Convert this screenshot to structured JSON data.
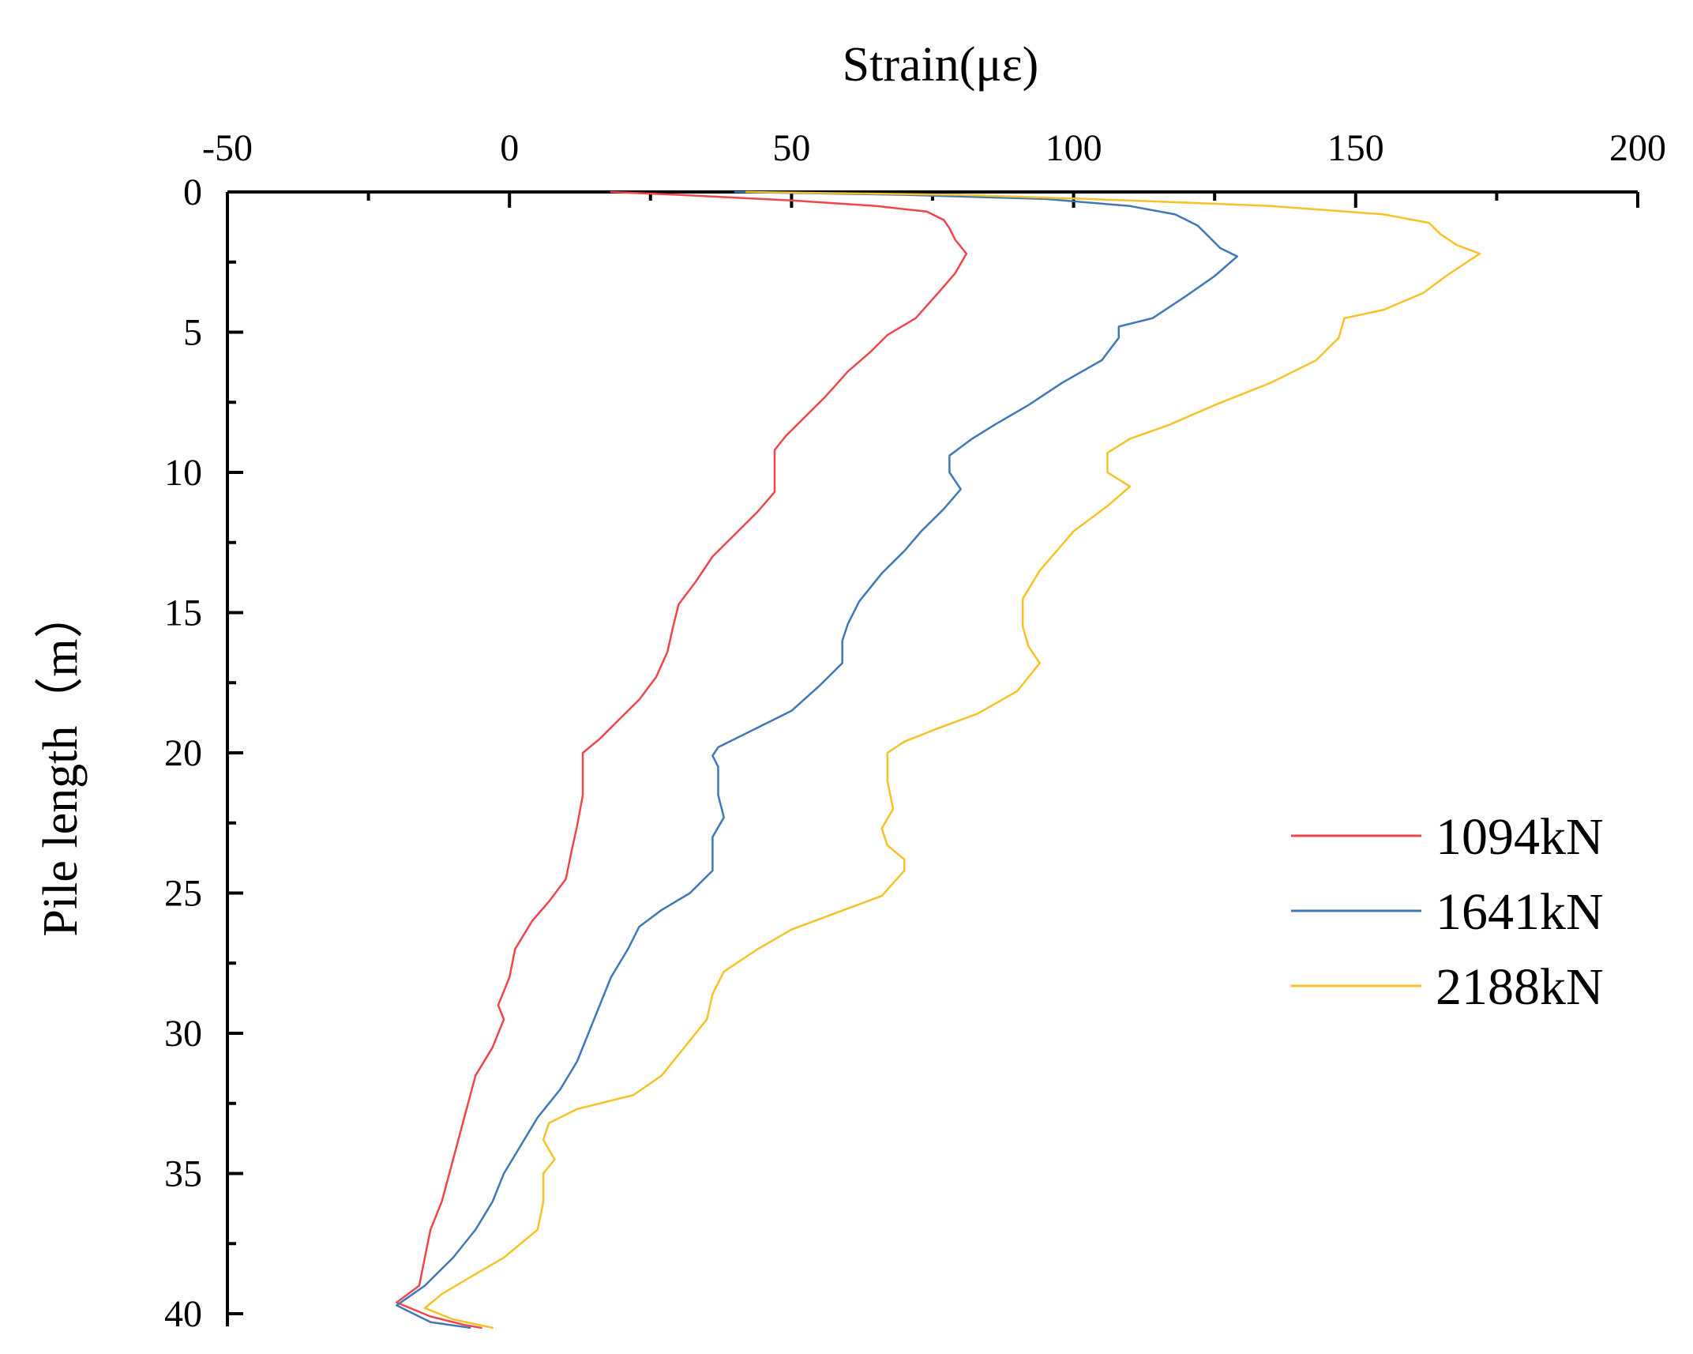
{
  "chart_data": {
    "type": "line",
    "xlabel": "Strain(με)",
    "ylabel": "Pile length（m）",
    "xlim": [
      -50,
      200
    ],
    "ylim": [
      0,
      40
    ],
    "x_axis_position": "top",
    "y_axis_inverted": true,
    "grid": false,
    "legend_position": "right",
    "xticks": [
      -50,
      0,
      50,
      100,
      150,
      200
    ],
    "xtick_labels": [
      "-50",
      "0",
      "50",
      "100",
      "150",
      "200"
    ],
    "yticks": [
      0,
      5,
      10,
      15,
      20,
      25,
      30,
      35,
      40
    ],
    "ytick_labels": [
      "0",
      "5",
      "10",
      "15",
      "20",
      "25",
      "30",
      "35",
      "40"
    ],
    "series": [
      {
        "name": "1094kN",
        "color": "#f0454a",
        "points": [
          [
            18,
            0
          ],
          [
            30,
            0.1
          ],
          [
            50,
            0.3
          ],
          [
            65,
            0.5
          ],
          [
            74,
            0.7
          ],
          [
            77,
            1.0
          ],
          [
            78,
            1.3
          ],
          [
            79,
            1.7
          ],
          [
            81,
            2.2
          ],
          [
            79,
            2.9
          ],
          [
            76,
            3.6
          ],
          [
            72,
            4.5
          ],
          [
            67,
            5.1
          ],
          [
            64,
            5.7
          ],
          [
            60,
            6.4
          ],
          [
            56,
            7.3
          ],
          [
            52,
            8.1
          ],
          [
            49,
            8.7
          ],
          [
            47,
            9.2
          ],
          [
            47,
            10.0
          ],
          [
            47,
            10.7
          ],
          [
            44,
            11.4
          ],
          [
            40,
            12.2
          ],
          [
            36,
            13.0
          ],
          [
            33,
            13.9
          ],
          [
            30,
            14.7
          ],
          [
            29,
            15.5
          ],
          [
            28,
            16.4
          ],
          [
            26,
            17.3
          ],
          [
            23,
            18.1
          ],
          [
            19,
            18.9
          ],
          [
            16,
            19.5
          ],
          [
            13,
            20.0
          ],
          [
            13,
            20.6
          ],
          [
            13,
            21.5
          ],
          [
            12,
            22.6
          ],
          [
            11,
            23.5
          ],
          [
            10,
            24.5
          ],
          [
            7,
            25.3
          ],
          [
            4,
            26.0
          ],
          [
            1,
            27.0
          ],
          [
            0,
            28.0
          ],
          [
            -2,
            29.0
          ],
          [
            -1,
            29.5
          ],
          [
            -3,
            30.5
          ],
          [
            -6,
            31.5
          ],
          [
            -8,
            33.0
          ],
          [
            -10,
            34.5
          ],
          [
            -12,
            36.0
          ],
          [
            -14,
            37.0
          ],
          [
            -15,
            38.0
          ],
          [
            -16,
            39.0
          ],
          [
            -20,
            39.6
          ],
          [
            -14,
            40.1
          ],
          [
            -8,
            40.4
          ],
          [
            -5,
            40.5
          ]
        ]
      },
      {
        "name": "1641kN",
        "color": "#3f78b8",
        "points": [
          [
            40,
            0
          ],
          [
            70,
            0.1
          ],
          [
            95,
            0.25
          ],
          [
            110,
            0.5
          ],
          [
            118,
            0.8
          ],
          [
            122,
            1.2
          ],
          [
            124,
            1.6
          ],
          [
            126,
            2.0
          ],
          [
            129,
            2.3
          ],
          [
            125,
            3.0
          ],
          [
            120,
            3.7
          ],
          [
            114,
            4.5
          ],
          [
            108,
            4.8
          ],
          [
            108,
            5.2
          ],
          [
            105,
            6.0
          ],
          [
            98,
            6.8
          ],
          [
            92,
            7.6
          ],
          [
            86,
            8.3
          ],
          [
            82,
            8.8
          ],
          [
            78,
            9.4
          ],
          [
            78,
            10.0
          ],
          [
            80,
            10.6
          ],
          [
            77,
            11.3
          ],
          [
            73,
            12.1
          ],
          [
            70,
            12.8
          ],
          [
            66,
            13.6
          ],
          [
            62,
            14.6
          ],
          [
            60,
            15.4
          ],
          [
            59,
            16.0
          ],
          [
            59,
            16.8
          ],
          [
            55,
            17.6
          ],
          [
            50,
            18.5
          ],
          [
            43,
            19.2
          ],
          [
            37,
            19.8
          ],
          [
            36,
            20.1
          ],
          [
            37,
            20.5
          ],
          [
            37,
            21.5
          ],
          [
            38,
            22.3
          ],
          [
            36,
            23.0
          ],
          [
            36,
            23.8
          ],
          [
            36,
            24.2
          ],
          [
            32,
            25.0
          ],
          [
            27,
            25.6
          ],
          [
            23,
            26.2
          ],
          [
            21,
            27.0
          ],
          [
            18,
            28.0
          ],
          [
            16,
            29.0
          ],
          [
            14,
            30.0
          ],
          [
            12,
            31.0
          ],
          [
            9,
            32.0
          ],
          [
            5,
            33.0
          ],
          [
            2,
            34.0
          ],
          [
            -1,
            35.0
          ],
          [
            -3,
            36.0
          ],
          [
            -6,
            37.0
          ],
          [
            -10,
            38.0
          ],
          [
            -15,
            39.0
          ],
          [
            -20,
            39.7
          ],
          [
            -14,
            40.3
          ],
          [
            -7,
            40.5
          ]
        ]
      },
      {
        "name": "2188kN",
        "color": "#f5c228",
        "points": [
          [
            42,
            0
          ],
          [
            80,
            0.1
          ],
          [
            110,
            0.3
          ],
          [
            135,
            0.5
          ],
          [
            155,
            0.8
          ],
          [
            163,
            1.1
          ],
          [
            165,
            1.5
          ],
          [
            168,
            1.9
          ],
          [
            172,
            2.2
          ],
          [
            166,
            3.0
          ],
          [
            162,
            3.6
          ],
          [
            155,
            4.2
          ],
          [
            148,
            4.5
          ],
          [
            147,
            5.2
          ],
          [
            143,
            6.0
          ],
          [
            135,
            6.8
          ],
          [
            125,
            7.6
          ],
          [
            117,
            8.3
          ],
          [
            110,
            8.8
          ],
          [
            106,
            9.3
          ],
          [
            106,
            10.0
          ],
          [
            110,
            10.5
          ],
          [
            106,
            11.2
          ],
          [
            100,
            12.1
          ],
          [
            97,
            12.8
          ],
          [
            94,
            13.5
          ],
          [
            91,
            14.5
          ],
          [
            91,
            15.5
          ],
          [
            92,
            16.2
          ],
          [
            94,
            16.8
          ],
          [
            90,
            17.8
          ],
          [
            83,
            18.6
          ],
          [
            75,
            19.2
          ],
          [
            70,
            19.6
          ],
          [
            67,
            20.0
          ],
          [
            67,
            21.0
          ],
          [
            68,
            22.0
          ],
          [
            66,
            22.7
          ],
          [
            67,
            23.3
          ],
          [
            70,
            23.8
          ],
          [
            70,
            24.2
          ],
          [
            66,
            25.1
          ],
          [
            58,
            25.7
          ],
          [
            50,
            26.3
          ],
          [
            44,
            27.0
          ],
          [
            38,
            27.8
          ],
          [
            36,
            28.6
          ],
          [
            35,
            29.5
          ],
          [
            31,
            30.5
          ],
          [
            27,
            31.5
          ],
          [
            22,
            32.2
          ],
          [
            12,
            32.7
          ],
          [
            7,
            33.2
          ],
          [
            6,
            33.8
          ],
          [
            8,
            34.5
          ],
          [
            6,
            35.0
          ],
          [
            6,
            36.0
          ],
          [
            5,
            37.0
          ],
          [
            -1,
            38.0
          ],
          [
            -7,
            38.7
          ],
          [
            -12,
            39.3
          ],
          [
            -15,
            39.8
          ],
          [
            -10,
            40.2
          ],
          [
            -3,
            40.5
          ]
        ]
      }
    ]
  }
}
